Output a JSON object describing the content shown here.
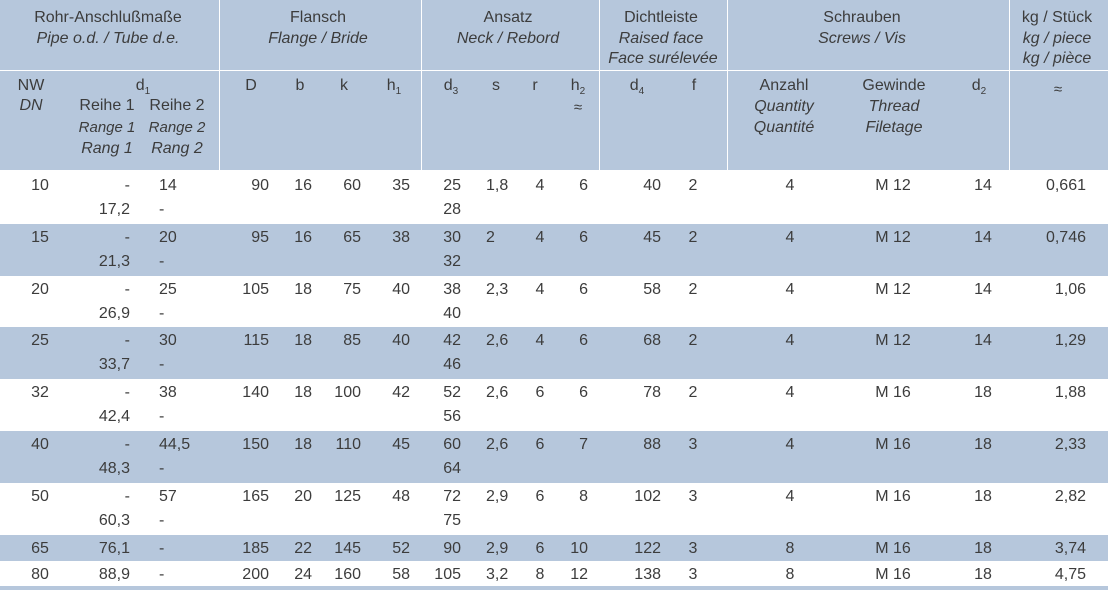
{
  "header": {
    "groups": [
      {
        "de": "Rohr-Anschlußmaße",
        "en_fr": "Pipe o.d. / Tube d.e."
      },
      {
        "de": "Flansch",
        "en_fr": "Flange / Bride"
      },
      {
        "de": "Ansatz",
        "en_fr": "Neck / Rebord"
      },
      {
        "de": "Dichtleiste",
        "en": "Raised face",
        "fr": "Face surélevée"
      },
      {
        "de": "Schrauben",
        "en_fr": "Screws / Vis"
      },
      {
        "de": "kg / Stück",
        "en": "kg / piece",
        "fr": "kg / pièce"
      }
    ],
    "nw": "NW",
    "dn": "DN",
    "d1": "d",
    "d1_sub": "1",
    "reihe1": "Reihe 1",
    "reihe2": "Reihe 2",
    "range1": "Range 1",
    "range2": "Range 2",
    "rang1": "Rang 1",
    "rang2": "Rang 2",
    "D": "D",
    "b": "b",
    "k": "k",
    "h1": "h",
    "h1_sub": "1",
    "d3": "d",
    "d3_sub": "3",
    "s": "s",
    "r": "r",
    "h2": "h",
    "h2_sub": "2",
    "approx": "≈",
    "d4": "d",
    "d4_sub": "4",
    "f": "f",
    "anzahl": "Anzahl",
    "quantity": "Quantity",
    "quantite": "Quantité",
    "gewinde": "Gewinde",
    "thread": "Thread",
    "filetage": "Filetage",
    "d2": "d",
    "d2_sub": "2",
    "kg_approx": "≈"
  },
  "rows": [
    {
      "nw": "10",
      "r1": [
        "-",
        "17,2"
      ],
      "r2": [
        "14",
        "-"
      ],
      "D": "90",
      "b": "16",
      "k": "60",
      "h1": "35",
      "d3": [
        "25",
        "28"
      ],
      "s": "1,8",
      "r": "4",
      "h2": "6",
      "d4": "40",
      "f": "2",
      "anz": "4",
      "gew": "M 12",
      "d2": "14",
      "kg": "0,661"
    },
    {
      "nw": "15",
      "r1": [
        "-",
        "21,3"
      ],
      "r2": [
        "20",
        "-"
      ],
      "D": "95",
      "b": "16",
      "k": "65",
      "h1": "38",
      "d3": [
        "30",
        "32"
      ],
      "s": "2",
      "r": "4",
      "h2": "6",
      "d4": "45",
      "f": "2",
      "anz": "4",
      "gew": "M 12",
      "d2": "14",
      "kg": "0,746"
    },
    {
      "nw": "20",
      "r1": [
        "-",
        "26,9"
      ],
      "r2": [
        "25",
        "-"
      ],
      "D": "105",
      "b": "18",
      "k": "75",
      "h1": "40",
      "d3": [
        "38",
        "40"
      ],
      "s": "2,3",
      "r": "4",
      "h2": "6",
      "d4": "58",
      "f": "2",
      "anz": "4",
      "gew": "M 12",
      "d2": "14",
      "kg": "1,06"
    },
    {
      "nw": "25",
      "r1": [
        "-",
        "33,7"
      ],
      "r2": [
        "30",
        "-"
      ],
      "D": "115",
      "b": "18",
      "k": "85",
      "h1": "40",
      "d3": [
        "42",
        "46"
      ],
      "s": "2,6",
      "r": "4",
      "h2": "6",
      "d4": "68",
      "f": "2",
      "anz": "4",
      "gew": "M 12",
      "d2": "14",
      "kg": "1,29"
    },
    {
      "nw": "32",
      "r1": [
        "-",
        "42,4"
      ],
      "r2": [
        "38",
        "-"
      ],
      "D": "140",
      "b": "18",
      "k": "100",
      "h1": "42",
      "d3": [
        "52",
        "56"
      ],
      "s": "2,6",
      "r": "6",
      "h2": "6",
      "d4": "78",
      "f": "2",
      "anz": "4",
      "gew": "M 16",
      "d2": "18",
      "kg": "1,88"
    },
    {
      "nw": "40",
      "r1": [
        "-",
        "48,3"
      ],
      "r2": [
        "44,5",
        "-"
      ],
      "D": "150",
      "b": "18",
      "k": "110",
      "h1": "45",
      "d3": [
        "60",
        "64"
      ],
      "s": "2,6",
      "r": "6",
      "h2": "7",
      "d4": "88",
      "f": "3",
      "anz": "4",
      "gew": "M 16",
      "d2": "18",
      "kg": "2,33"
    },
    {
      "nw": "50",
      "r1": [
        "-",
        "60,3"
      ],
      "r2": [
        "57",
        "-"
      ],
      "D": "165",
      "b": "20",
      "k": "125",
      "h1": "48",
      "d3": [
        "72",
        "75"
      ],
      "s": "2,9",
      "r": "6",
      "h2": "8",
      "d4": "102",
      "f": "3",
      "anz": "4",
      "gew": "M 16",
      "d2": "18",
      "kg": "2,82"
    },
    {
      "nw": "65",
      "r1": [
        "76,1"
      ],
      "r2": [
        "-"
      ],
      "D": "185",
      "b": "22",
      "k": "145",
      "h1": "52",
      "d3": [
        "90"
      ],
      "s": "2,9",
      "r": "6",
      "h2": "10",
      "d4": "122",
      "f": "3",
      "anz": "8",
      "gew": "M 16",
      "d2": "18",
      "kg": "3,74"
    },
    {
      "nw": "80",
      "r1": [
        "88,9"
      ],
      "r2": [
        "-"
      ],
      "D": "200",
      "b": "24",
      "k": "160",
      "h1": "58",
      "d3": [
        "105"
      ],
      "s": "3,2",
      "r": "8",
      "h2": "12",
      "d4": "138",
      "f": "3",
      "anz": "8",
      "gew": "M 16",
      "d2": "18",
      "kg": "4,75"
    }
  ],
  "colors": {
    "header_bg": "#b6c7dc",
    "band_bg": "#b6c7dc",
    "text": "#3c3c3c"
  }
}
